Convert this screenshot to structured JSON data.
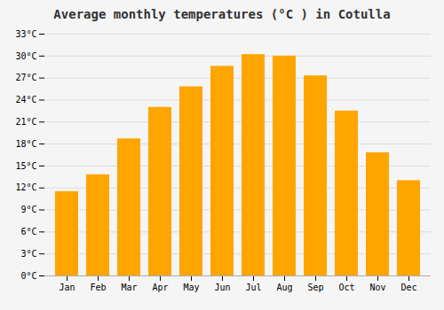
{
  "chart_data": {
    "type": "bar",
    "title": "Average monthly temperatures (°C ) in Cotulla",
    "categories": [
      "Jan",
      "Feb",
      "Mar",
      "Apr",
      "May",
      "Jun",
      "Jul",
      "Aug",
      "Sep",
      "Oct",
      "Nov",
      "Dec"
    ],
    "values": [
      11.5,
      13.8,
      18.7,
      23.0,
      25.8,
      28.6,
      30.2,
      30.0,
      27.3,
      22.5,
      16.8,
      13.0
    ],
    "color": "#FFA500",
    "ylim": [
      0,
      33
    ],
    "yticks": [
      {
        "value": 0,
        "label": "0°C"
      },
      {
        "value": 3,
        "label": "3°C"
      },
      {
        "value": 6,
        "label": "6°C"
      },
      {
        "value": 9,
        "label": "9°C"
      },
      {
        "value": 12,
        "label": "12°C"
      },
      {
        "value": 15,
        "label": "15°C"
      },
      {
        "value": 18,
        "label": "18°C"
      },
      {
        "value": 21,
        "label": "21°C"
      },
      {
        "value": 24,
        "label": "24°C"
      },
      {
        "value": 27,
        "label": "27°C"
      },
      {
        "value": 30,
        "label": "30°C"
      },
      {
        "value": 33,
        "label": "33°C"
      }
    ],
    "grid": true
  }
}
